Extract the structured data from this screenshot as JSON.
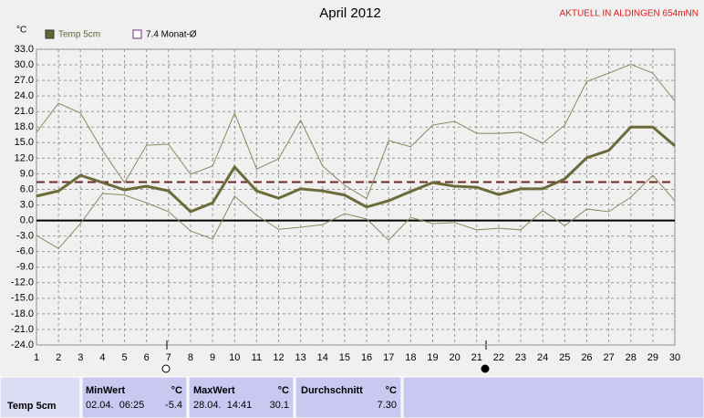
{
  "chart_data": {
    "type": "line",
    "title": "April 2012",
    "subtitle": "AKTUELL IN ALDINGEN 654mNN",
    "y_label": "°C",
    "x": [
      1,
      2,
      3,
      4,
      5,
      6,
      7,
      8,
      9,
      10,
      11,
      12,
      13,
      14,
      15,
      16,
      17,
      18,
      19,
      20,
      21,
      22,
      23,
      24,
      25,
      26,
      27,
      28,
      29,
      30
    ],
    "xlim": [
      1,
      30
    ],
    "ylim": [
      -24,
      33
    ],
    "yticks": [
      {
        "value": -24,
        "label": "-24.0"
      },
      {
        "value": -21,
        "label": "-21.0"
      },
      {
        "value": -18,
        "label": "-18.0"
      },
      {
        "value": -15,
        "label": "-15.0"
      },
      {
        "value": -12,
        "label": "-12.0"
      },
      {
        "value": -9,
        "label": "-9.0"
      },
      {
        "value": -6,
        "label": "-6.0"
      },
      {
        "value": -3,
        "label": "-3.0"
      },
      {
        "value": 0,
        "label": "0.0"
      },
      {
        "value": 3,
        "label": "3.0"
      },
      {
        "value": 6,
        "label": "6.0"
      },
      {
        "value": 9,
        "label": "9.0"
      },
      {
        "value": 12,
        "label": "12.0"
      },
      {
        "value": 15,
        "label": "15.0"
      },
      {
        "value": 18,
        "label": "18.0"
      },
      {
        "value": 21,
        "label": "21.0"
      },
      {
        "value": 24,
        "label": "24.0"
      },
      {
        "value": 27,
        "label": "27.0"
      },
      {
        "value": 30,
        "label": "30.0"
      },
      {
        "value": 33,
        "label": "33.0"
      }
    ],
    "grid": true,
    "series": [
      {
        "name": "Temp 5cm",
        "color": "#6b6b3a",
        "values": [
          4.7,
          5.7,
          8.7,
          7.3,
          5.9,
          6.6,
          5.7,
          1.7,
          3.4,
          10.3,
          5.7,
          4.3,
          6.1,
          5.7,
          4.9,
          2.6,
          3.8,
          5.6,
          7.3,
          6.6,
          6.4,
          5.0,
          6.1,
          6.1,
          8.0,
          12.1,
          13.5,
          18.0,
          18.0,
          14.4
        ]
      },
      {
        "color": "#8a8a62",
        "values": [
          17.0,
          22.6,
          20.7,
          13.5,
          7.3,
          14.5,
          14.7,
          8.9,
          10.5,
          20.7,
          9.9,
          11.9,
          19.3,
          10.5,
          6.8,
          4.2,
          15.4,
          14.2,
          18.4,
          19.1,
          16.8,
          16.8,
          17.0,
          14.9,
          18.4,
          26.8,
          28.4,
          30.1,
          28.4,
          23.0
        ]
      },
      {
        "color": "#8a8a62",
        "values": [
          -2.9,
          -5.4,
          -0.6,
          5.2,
          4.9,
          3.4,
          1.7,
          -2.0,
          -3.6,
          4.7,
          1.0,
          -1.7,
          -1.3,
          -0.8,
          1.3,
          0.3,
          -3.8,
          0.6,
          -0.6,
          -0.4,
          -1.8,
          -1.5,
          -1.8,
          1.9,
          -1.0,
          2.2,
          1.7,
          4.5,
          8.7,
          3.8
        ]
      }
    ],
    "mean_line": {
      "name": "7.4 Monat-Ø",
      "value": 7.4,
      "color": "#6b2a2a"
    }
  },
  "table": {
    "headers": [
      "MinWert",
      "°C",
      "MaxWert",
      "°C",
      "Durchschnitt",
      "°C"
    ],
    "rows": [
      [
        "Temp 5cm",
        "02.04.  06:25",
        "-5.4",
        "28.04.  14:41",
        "30.1",
        "7.30"
      ]
    ]
  }
}
